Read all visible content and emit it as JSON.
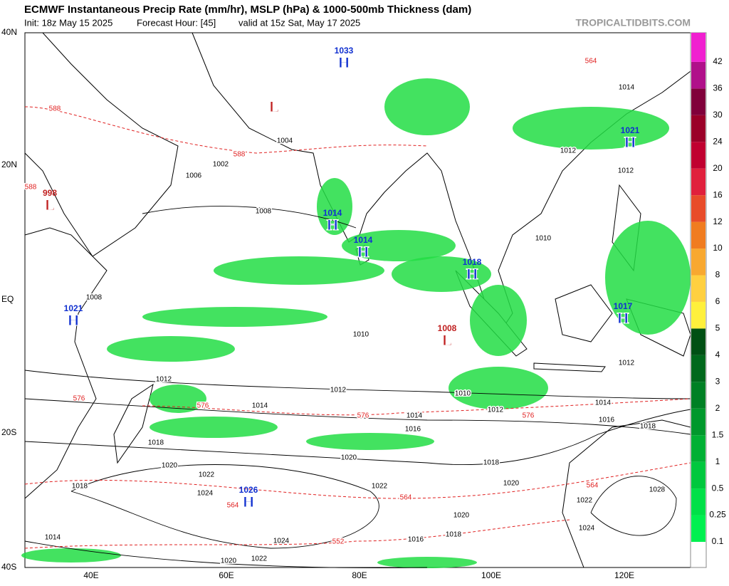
{
  "header": {
    "title": "ECMWF Instantaneous Precip Rate (mm/hr), MSLP (hPa) & 1000-500mb Thickness (dam)",
    "init": "Init: 18z May 15 2025",
    "forecast_hour": "Forecast Hour: [45]",
    "valid": "valid at 15z Sat, May 17 2025",
    "site": "TROPICALTIDBITS.COM"
  },
  "map": {
    "lat_labels": [
      "40N",
      "20N",
      "EQ",
      "20S",
      "40S"
    ],
    "lon_labels": [
      "40E",
      "60E",
      "80E",
      "100E",
      "120E"
    ],
    "centers": [
      {
        "letter": "H",
        "value": 1033
      },
      {
        "letter": "L"
      },
      {
        "letter": "L",
        "value": 998
      },
      {
        "letter": "H",
        "value": 1021
      },
      {
        "letter": "H",
        "value": 1014
      },
      {
        "letter": "H",
        "value": 1014
      },
      {
        "letter": "H",
        "value": 1018
      },
      {
        "letter": "L",
        "value": 1008
      },
      {
        "letter": "H",
        "value": 1017
      },
      {
        "letter": "H",
        "value": 1021
      },
      {
        "letter": "H",
        "value": 1026
      }
    ],
    "isobar_labels": [
      1008,
      1006,
      1004,
      1002,
      1012,
      1012,
      1010,
      1014,
      1014,
      1016,
      1016,
      1018,
      1018,
      1020,
      1020,
      1022,
      1022,
      1024,
      1024,
      1020,
      1018,
      1016,
      1020,
      1028,
      1022,
      1024,
      1014,
      1020,
      1022,
      1010,
      1012,
      1012,
      1010,
      1008,
      1014,
      1012,
      1018,
      1018,
      1012,
      1014
    ],
    "thickness_labels": [
      588,
      588,
      576,
      576,
      576,
      564,
      564,
      564,
      552,
      576,
      588,
      564
    ]
  },
  "colorbar": {
    "levels": [
      0.1,
      0.25,
      0.5,
      1,
      1.5,
      2,
      3,
      4,
      5,
      6,
      8,
      10,
      12,
      16,
      20,
      24,
      30,
      36,
      42
    ],
    "colors": [
      "#00f050",
      "#00e048",
      "#00c83e",
      "#00b034",
      "#00982c",
      "#008024",
      "#00681c",
      "#005014",
      "#fff03c",
      "#ffd040",
      "#f8a830",
      "#f07c20",
      "#e84c2a",
      "#e0203c",
      "#c00030",
      "#9a0028",
      "#80003a",
      "#b0108a",
      "#f020d0"
    ]
  }
}
